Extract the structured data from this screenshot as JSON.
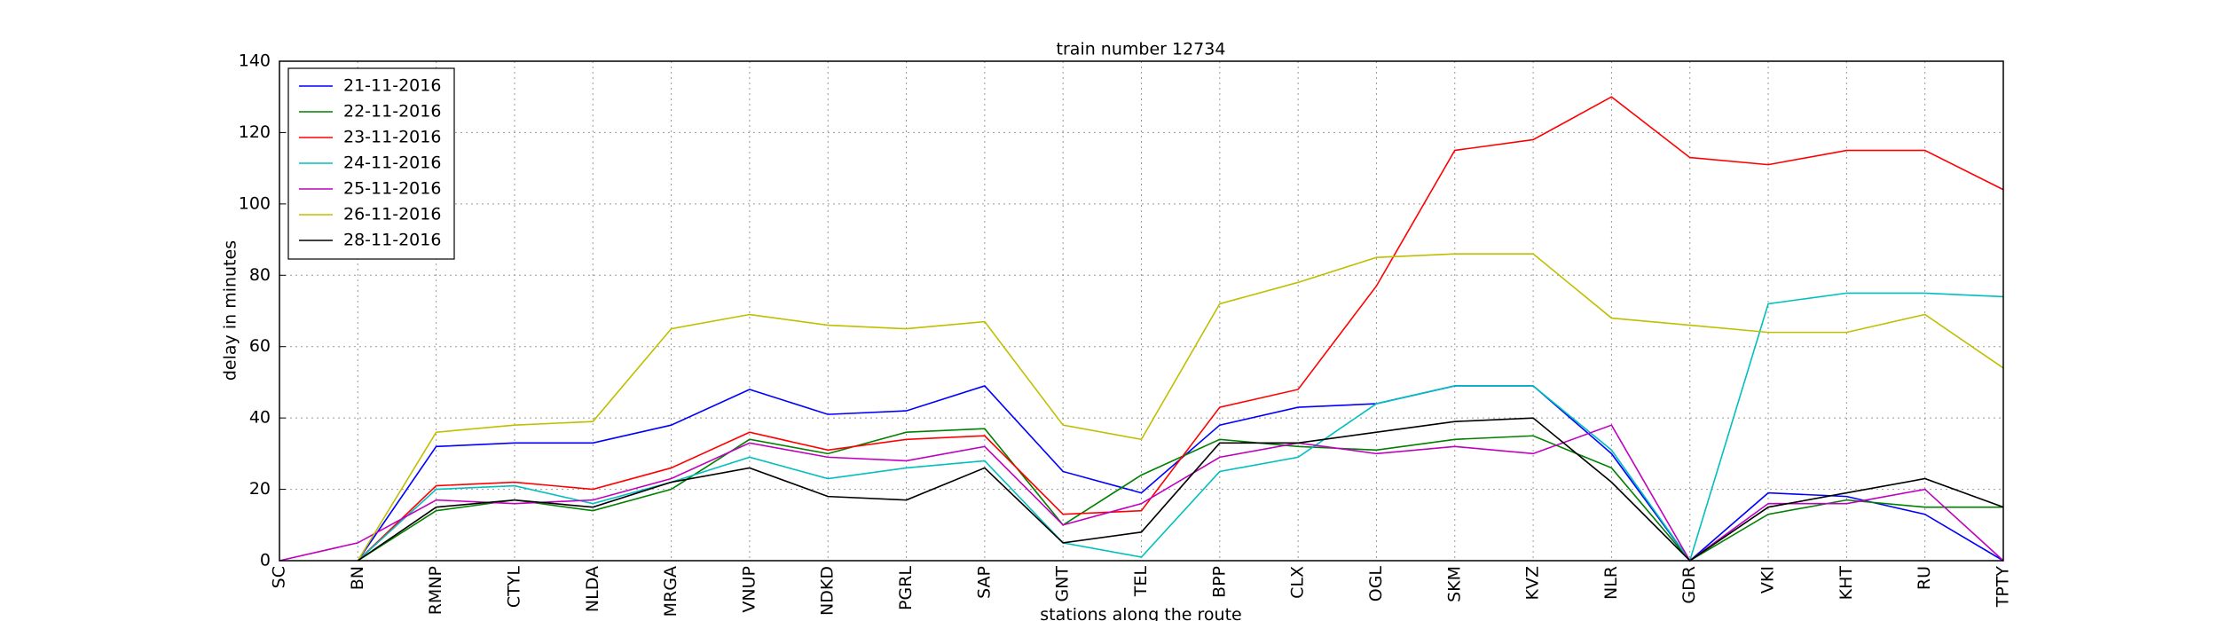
{
  "chart_data": {
    "type": "line",
    "title": "train number 12734",
    "x_label": "stations along the route",
    "y_label": "delay in minutes",
    "categories": [
      "SC",
      "BN",
      "RMNP",
      "CTYL",
      "NLDA",
      "MRGA",
      "VNUP",
      "NDKD",
      "PGRL",
      "SAP",
      "GNT",
      "TEL",
      "BPP",
      "CLX",
      "OGL",
      "SKM",
      "KVZ",
      "NLR",
      "GDR",
      "VKI",
      "KHT",
      "RU",
      "TPTY"
    ],
    "ylim": [
      0,
      140
    ],
    "yticks": [
      0,
      20,
      40,
      60,
      80,
      100,
      120,
      140
    ],
    "grid": true,
    "legend_position": "upper left",
    "series": [
      {
        "name": "21-11-2016",
        "color": "#0000ff",
        "values": [
          null,
          0,
          32,
          33,
          33,
          38,
          48,
          41,
          42,
          49,
          25,
          19,
          38,
          43,
          44,
          49,
          49,
          30,
          0,
          19,
          18,
          13,
          0
        ]
      },
      {
        "name": "22-11-2016",
        "color": "#008000",
        "values": [
          null,
          0,
          14,
          17,
          14,
          20,
          34,
          30,
          36,
          37,
          10,
          24,
          34,
          32,
          31,
          34,
          35,
          26,
          0,
          13,
          17,
          15,
          15
        ]
      },
      {
        "name": "23-11-2016",
        "color": "#ff0000",
        "values": [
          null,
          0,
          21,
          22,
          20,
          26,
          36,
          31,
          34,
          35,
          13,
          14,
          43,
          48,
          77,
          115,
          118,
          130,
          113,
          111,
          115,
          115,
          104
        ]
      },
      {
        "name": "24-11-2016",
        "color": "#00bfbf",
        "values": [
          null,
          0,
          20,
          21,
          16,
          22,
          29,
          23,
          26,
          28,
          5,
          1,
          25,
          29,
          44,
          49,
          49,
          31,
          0,
          72,
          75,
          75,
          74
        ]
      },
      {
        "name": "25-11-2016",
        "color": "#bf00bf",
        "values": [
          0,
          5,
          17,
          16,
          17,
          23,
          33,
          29,
          28,
          32,
          10,
          16,
          29,
          33,
          30,
          32,
          30,
          38,
          0,
          16,
          16,
          20,
          0
        ]
      },
      {
        "name": "26-11-2016",
        "color": "#bfbf00",
        "values": [
          null,
          0,
          36,
          38,
          39,
          65,
          69,
          66,
          65,
          67,
          38,
          34,
          72,
          78,
          85,
          86,
          86,
          68,
          66,
          64,
          64,
          69,
          54
        ]
      },
      {
        "name": "28-11-2016",
        "color": "#000000",
        "values": [
          null,
          0,
          15,
          17,
          15,
          22,
          26,
          18,
          17,
          26,
          5,
          8,
          33,
          33,
          36,
          39,
          40,
          22,
          0,
          15,
          19,
          23,
          15
        ]
      }
    ]
  }
}
